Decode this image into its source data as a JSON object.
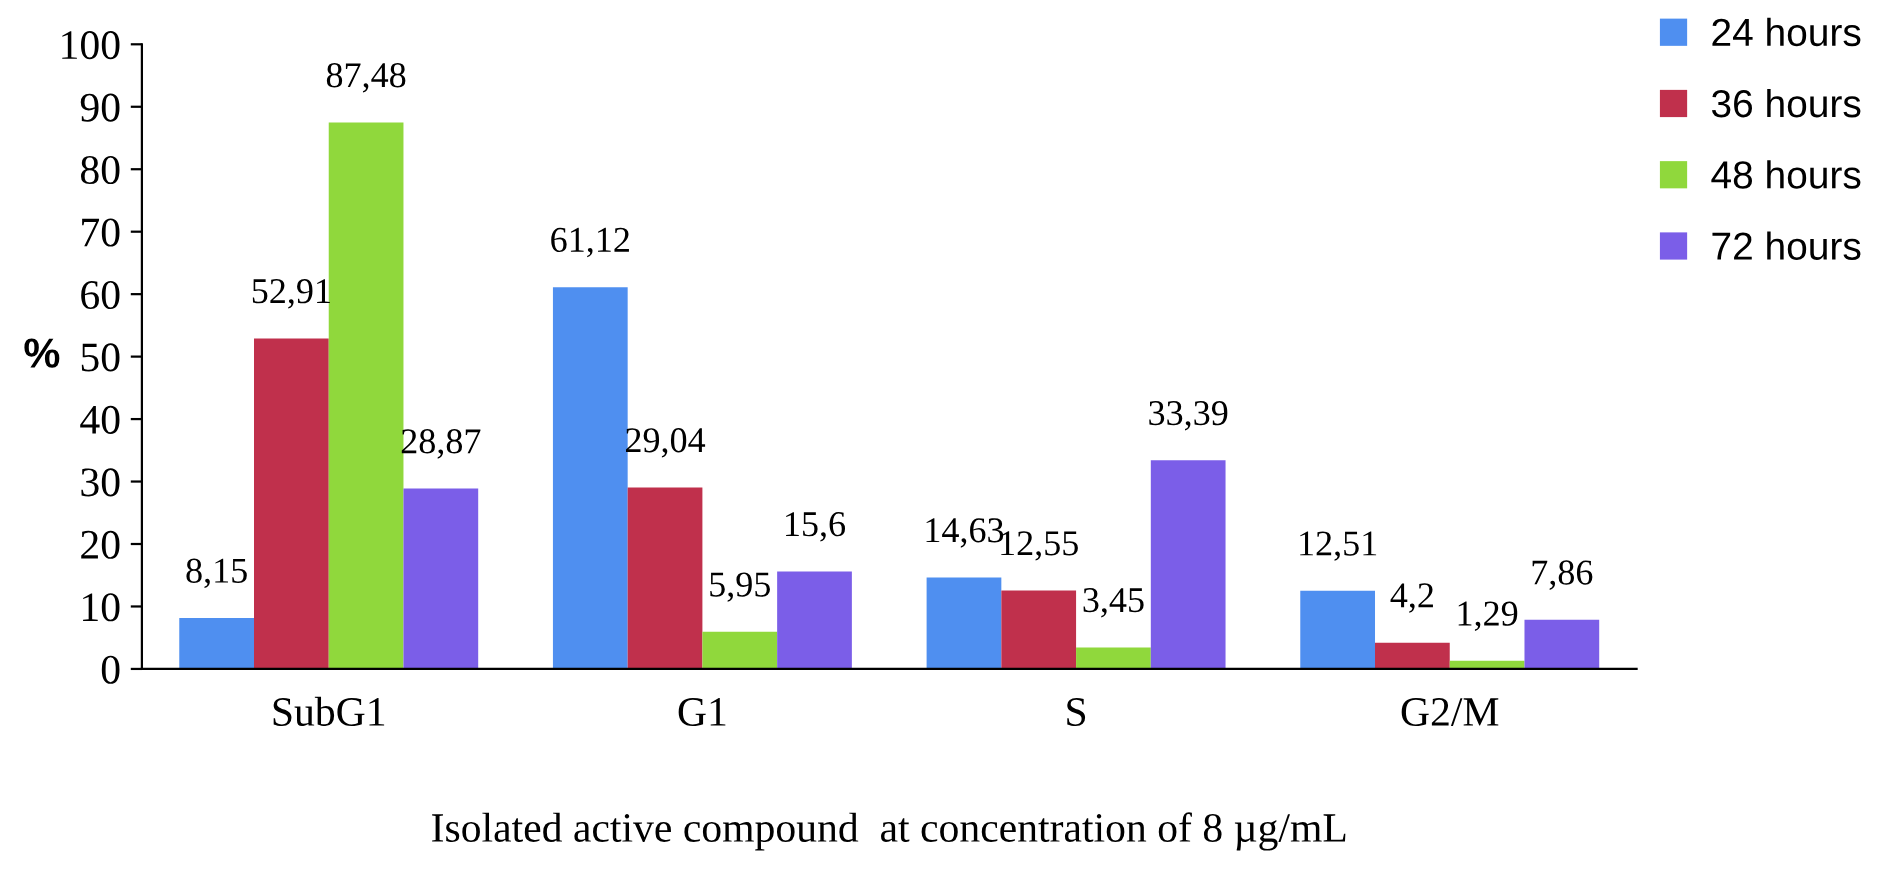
{
  "chart_data": {
    "type": "bar",
    "xlabel": "Isolated active compound  at concentration of 8 µg/mL",
    "ylabel": "%",
    "categories": [
      "SubG1",
      "G1",
      "S",
      "G2/M"
    ],
    "series": [
      {
        "name": "24 hours",
        "color": "#4f8ff0",
        "values": [
          8.15,
          61.12,
          14.63,
          12.51
        ],
        "value_labels": [
          "8,15",
          "61,12",
          "14,63",
          "12,51"
        ]
      },
      {
        "name": "36 hours",
        "color": "#c0304c",
        "values": [
          52.91,
          29.04,
          12.55,
          4.2
        ],
        "value_labels": [
          "52,91",
          "29,04",
          "12,55",
          "4,2"
        ]
      },
      {
        "name": "48 hours",
        "color": "#90d83c",
        "values": [
          87.48,
          5.95,
          3.45,
          1.29
        ],
        "value_labels": [
          "87,48",
          "5,95",
          "3,45",
          "1,29"
        ]
      },
      {
        "name": "72 hours",
        "color": "#7b5ee8",
        "values": [
          28.87,
          15.6,
          33.39,
          7.86
        ],
        "value_labels": [
          "28,87",
          "15,6",
          "33,39",
          "7,86"
        ]
      }
    ],
    "ylim": [
      0,
      100
    ],
    "yticks": [
      0,
      10,
      20,
      30,
      40,
      50,
      60,
      70,
      80,
      90,
      100
    ],
    "grid": false,
    "legend": "top right"
  }
}
